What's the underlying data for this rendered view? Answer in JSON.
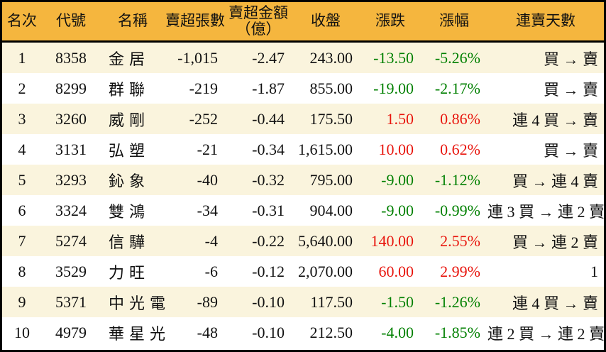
{
  "colors": {
    "up": "#e8140c",
    "down": "#008000",
    "header_bg": "#f5b63e",
    "row_odd_bg": "#faf4dd",
    "row_even_bg": "#ffffff",
    "border": "#000000"
  },
  "chart_data": {
    "type": "table",
    "title": "",
    "legend": "up values red, down values green",
    "columns": [
      {
        "key": "rank",
        "label": "名次"
      },
      {
        "key": "code",
        "label": "代號"
      },
      {
        "key": "name",
        "label": "名稱"
      },
      {
        "key": "sell_volume",
        "label": "賣超張數"
      },
      {
        "key": "sell_amount",
        "label": "賣超金額",
        "label2": "（億）"
      },
      {
        "key": "close",
        "label": "收盤"
      },
      {
        "key": "change",
        "label": "漲跌"
      },
      {
        "key": "change_pct",
        "label": "漲幅"
      },
      {
        "key": "streak",
        "label": "連賣天數"
      }
    ],
    "rows": [
      {
        "rank": "1",
        "code": "8358",
        "name": "金居",
        "sell_volume": "-1,015",
        "sell_amount": "-2.47",
        "close": "243.00",
        "change": "-13.50",
        "change_pct": "-5.26%",
        "direction": "down",
        "streak": "買 → 賣"
      },
      {
        "rank": "2",
        "code": "8299",
        "name": "群聯",
        "sell_volume": "-219",
        "sell_amount": "-1.87",
        "close": "855.00",
        "change": "-19.00",
        "change_pct": "-2.17%",
        "direction": "down",
        "streak": "買 → 賣"
      },
      {
        "rank": "3",
        "code": "3260",
        "name": "威剛",
        "sell_volume": "-252",
        "sell_amount": "-0.44",
        "close": "175.50",
        "change": "1.50",
        "change_pct": "0.86%",
        "direction": "up",
        "streak": "連 4 買 → 賣"
      },
      {
        "rank": "4",
        "code": "3131",
        "name": "弘塑",
        "sell_volume": "-21",
        "sell_amount": "-0.34",
        "close": "1,615.00",
        "change": "10.00",
        "change_pct": "0.62%",
        "direction": "up",
        "streak": "買 → 賣"
      },
      {
        "rank": "5",
        "code": "3293",
        "name": "鈊象",
        "sell_volume": "-40",
        "sell_amount": "-0.32",
        "close": "795.00",
        "change": "-9.00",
        "change_pct": "-1.12%",
        "direction": "down",
        "streak": "買 → 連 4 賣"
      },
      {
        "rank": "6",
        "code": "3324",
        "name": "雙鴻",
        "sell_volume": "-34",
        "sell_amount": "-0.31",
        "close": "904.00",
        "change": "-9.00",
        "change_pct": "-0.99%",
        "direction": "down",
        "streak": "連 3 買 → 連 2 賣"
      },
      {
        "rank": "7",
        "code": "5274",
        "name": "信驊",
        "sell_volume": "-4",
        "sell_amount": "-0.22",
        "close": "5,640.00",
        "change": "140.00",
        "change_pct": "2.55%",
        "direction": "up",
        "streak": "買 → 連 2 賣"
      },
      {
        "rank": "8",
        "code": "3529",
        "name": "力旺",
        "sell_volume": "-6",
        "sell_amount": "-0.12",
        "close": "2,070.00",
        "change": "60.00",
        "change_pct": "2.99%",
        "direction": "up",
        "streak": "1"
      },
      {
        "rank": "9",
        "code": "5371",
        "name": "中光電",
        "sell_volume": "-89",
        "sell_amount": "-0.10",
        "close": "117.50",
        "change": "-1.50",
        "change_pct": "-1.26%",
        "direction": "down",
        "streak": "連 4 買 → 賣"
      },
      {
        "rank": "10",
        "code": "4979",
        "name": "華星光",
        "sell_volume": "-48",
        "sell_amount": "-0.10",
        "close": "212.50",
        "change": "-4.00",
        "change_pct": "-1.85%",
        "direction": "down",
        "streak": "連 2 買 → 連 2 賣"
      }
    ]
  }
}
